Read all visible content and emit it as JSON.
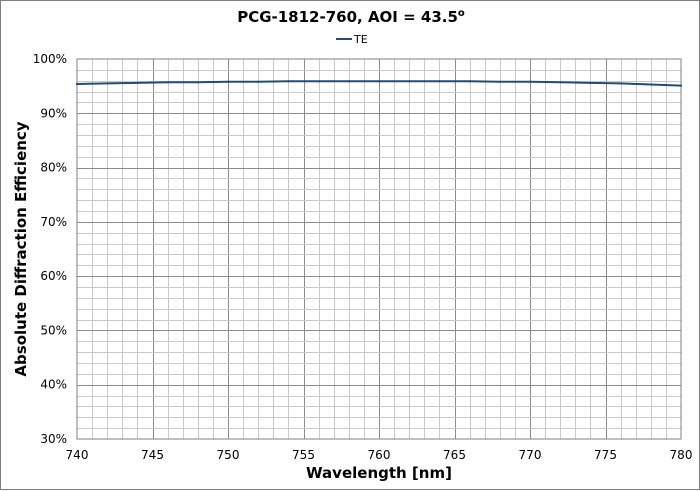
{
  "chart_data": {
    "type": "line",
    "title": "PCG-1812-760, AOI = 43.5",
    "title_superscript": "o",
    "xlabel": "Wavelength [nm]",
    "ylabel": "Absolute Diffraction Efficiency",
    "xlim": [
      740,
      780
    ],
    "ylim": [
      30,
      100
    ],
    "x_ticks": [
      "740",
      "745",
      "750",
      "755",
      "760",
      "765",
      "770",
      "775",
      "780"
    ],
    "y_ticks": [
      "30%",
      "40%",
      "50%",
      "60%",
      "70%",
      "80%",
      "90%",
      "100%"
    ],
    "grid": true,
    "legend_position": "top-center",
    "series": [
      {
        "name": "TE",
        "color": "#1f4e79",
        "x": [
          740,
          742,
          744,
          746,
          748,
          750,
          752,
          754,
          756,
          758,
          760,
          762,
          764,
          766,
          768,
          770,
          772,
          774,
          776,
          778,
          780
        ],
        "y": [
          95.4,
          95.5,
          95.6,
          95.7,
          95.7,
          95.8,
          95.8,
          95.9,
          95.9,
          95.9,
          95.9,
          95.9,
          95.9,
          95.9,
          95.8,
          95.8,
          95.7,
          95.6,
          95.5,
          95.3,
          95.1
        ]
      }
    ]
  }
}
